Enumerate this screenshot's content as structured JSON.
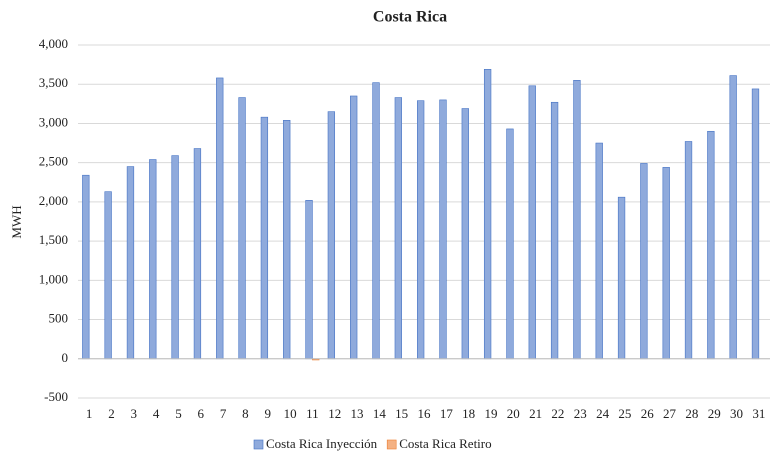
{
  "chart_data": {
    "type": "bar",
    "title": "Costa  Rica",
    "y_label": "MWH",
    "categories": [
      "1",
      "2",
      "3",
      "4",
      "5",
      "6",
      "7",
      "8",
      "9",
      "10",
      "11",
      "12",
      "13",
      "14",
      "15",
      "16",
      "17",
      "18",
      "19",
      "20",
      "21",
      "22",
      "23",
      "24",
      "25",
      "26",
      "27",
      "28",
      "29",
      "30",
      "31"
    ],
    "series": [
      {
        "name": "Costa Rica Inyección",
        "color": "#8faadc",
        "values": [
          2340,
          2130,
          2450,
          2540,
          2590,
          2680,
          3580,
          3330,
          3080,
          3040,
          2020,
          3150,
          3350,
          3520,
          3330,
          3290,
          3300,
          3190,
          3690,
          2930,
          3480,
          3270,
          3550,
          2750,
          2060,
          2490,
          2440,
          2770,
          2900,
          3610,
          3440
        ]
      },
      {
        "name": "Costa Rica Retiro",
        "color": "#f4b183",
        "values": [
          0,
          0,
          0,
          0,
          0,
          0,
          0,
          0,
          0,
          0,
          -15,
          0,
          0,
          0,
          0,
          0,
          0,
          0,
          0,
          0,
          0,
          0,
          0,
          0,
          0,
          0,
          0,
          0,
          0,
          0,
          0
        ]
      }
    ],
    "ylim": [
      -500,
      4000
    ],
    "yticks": [
      -500,
      0,
      500,
      {
        "value": 1000,
        "label": "1,000"
      },
      {
        "value": 1500,
        "label": "1,500"
      },
      {
        "value": 2000,
        "label": "2,000"
      },
      {
        "value": 2500,
        "label": "2,500"
      },
      {
        "value": 3000,
        "label": "3,000"
      },
      {
        "value": 3500,
        "label": "3,500"
      },
      {
        "value": 4000,
        "label": "4,000"
      }
    ],
    "grid": true,
    "legend": "bottom"
  }
}
